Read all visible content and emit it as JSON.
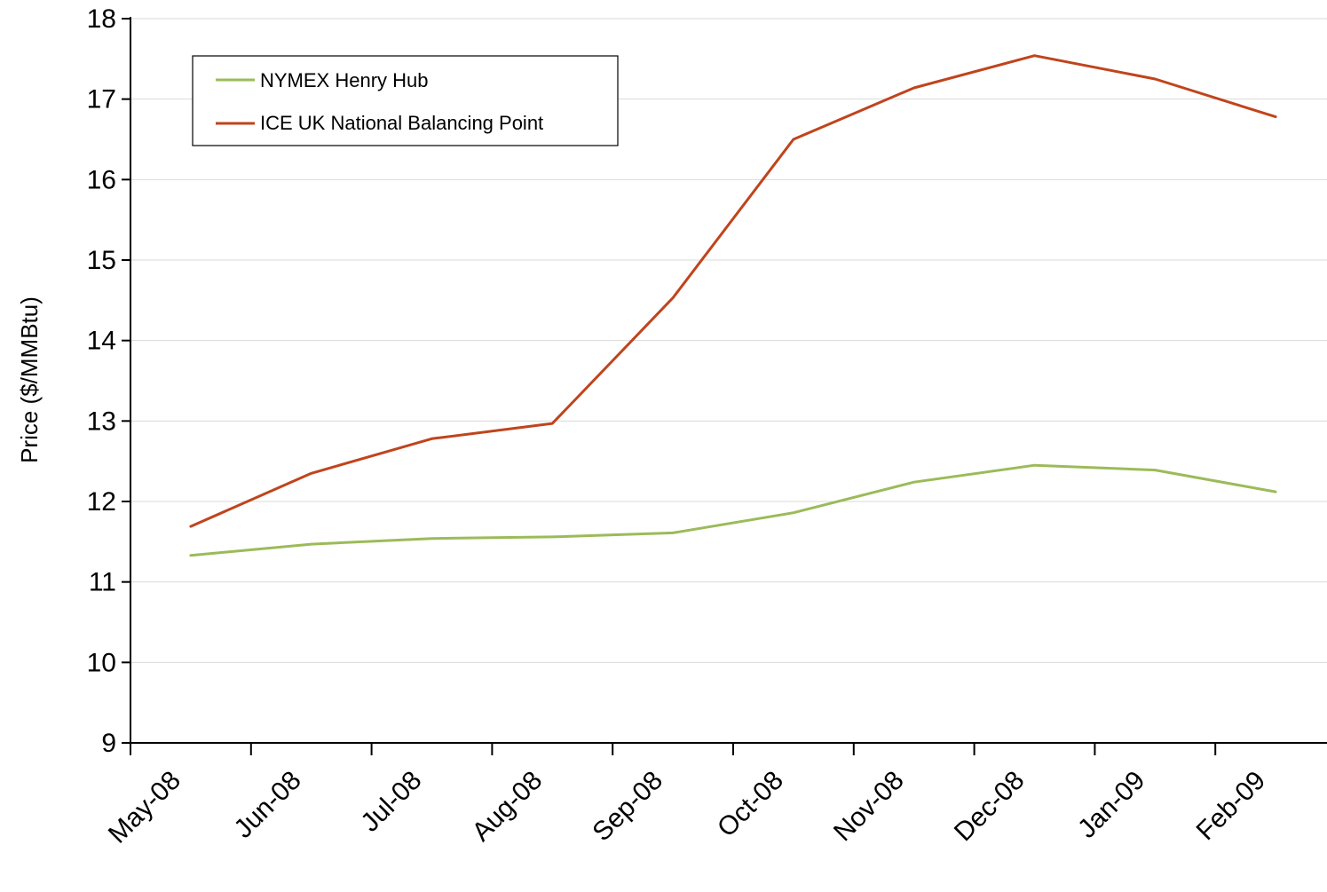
{
  "chart_data": {
    "type": "line",
    "title": "",
    "xlabel": "",
    "ylabel": "Price ($/MMBtu)",
    "ylim": [
      9,
      18
    ],
    "yticks": [
      9,
      10,
      11,
      12,
      13,
      14,
      15,
      16,
      17,
      18
    ],
    "categories": [
      "May-08",
      "Jun-08",
      "Jul-08",
      "Aug-08",
      "Sep-08",
      "Oct-08",
      "Nov-08",
      "Dec-08",
      "Jan-09",
      "Feb-09"
    ],
    "grid": "horizontal",
    "legend_position": "top-left",
    "series": [
      {
        "name": "NYMEX Henry Hub",
        "color": "#9bbb59",
        "values": [
          11.33,
          11.47,
          11.54,
          11.56,
          11.61,
          11.86,
          12.24,
          12.45,
          12.39,
          12.12
        ]
      },
      {
        "name": "ICE UK National Balancing Point",
        "color": "#c0441c",
        "values": [
          11.69,
          12.35,
          12.78,
          12.97,
          14.53,
          16.5,
          17.14,
          17.54,
          17.25,
          16.78
        ]
      }
    ]
  }
}
